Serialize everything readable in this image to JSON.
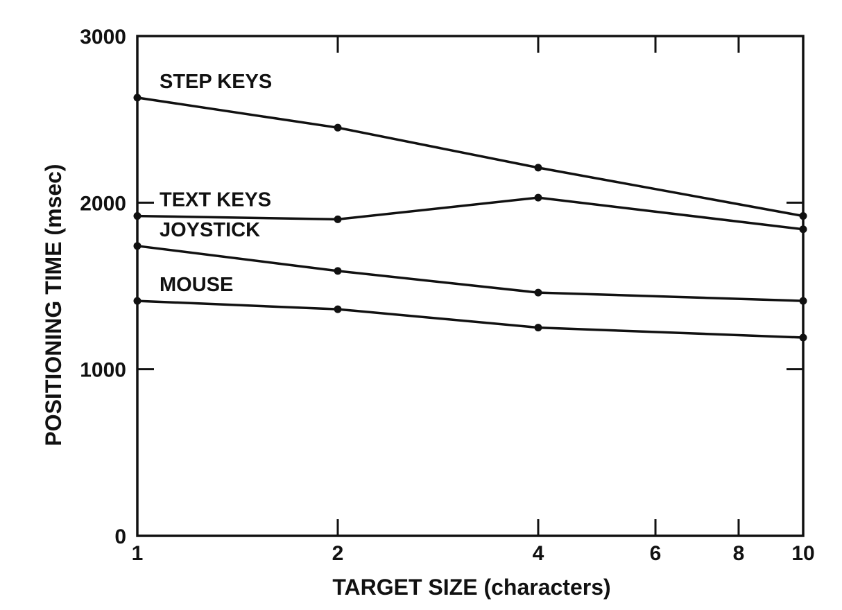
{
  "chart_data": {
    "type": "line",
    "xlabel": "TARGET SIZE (characters)",
    "ylabel": "POSITIONING TIME (msec)",
    "x_scale": "log",
    "xlim": [
      1,
      10
    ],
    "ylim": [
      0,
      3000
    ],
    "xticks": [
      1,
      2,
      4,
      6,
      8,
      10
    ],
    "xtick_labels": [
      "1",
      "2",
      "4",
      "6",
      "8",
      "10"
    ],
    "yticks": [
      0,
      1000,
      2000,
      3000
    ],
    "ytick_labels": [
      "0",
      "1000",
      "2000",
      "3000"
    ],
    "grid": false,
    "legend": "inline labels",
    "x": [
      1,
      2,
      4,
      10
    ],
    "series": [
      {
        "name": "STEP KEYS",
        "values": [
          2630,
          2450,
          2210,
          1920
        ]
      },
      {
        "name": "TEXT KEYS",
        "values": [
          1920,
          1900,
          2030,
          1840
        ]
      },
      {
        "name": "JOYSTICK",
        "values": [
          1740,
          1590,
          1460,
          1410
        ]
      },
      {
        "name": "MOUSE",
        "values": [
          1410,
          1360,
          1250,
          1190
        ]
      }
    ]
  }
}
